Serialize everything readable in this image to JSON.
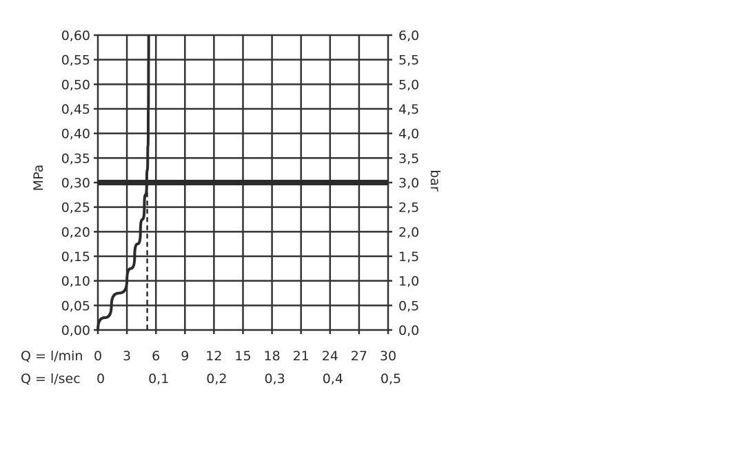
{
  "chart_data": {
    "type": "line",
    "ylabel_left": "MPa",
    "ylabel_right": "bar",
    "xlabel_min": "Q = l/min",
    "xlabel_sec": "Q = l/sec",
    "xlim": [
      0,
      30
    ],
    "ylim": [
      0,
      0.6
    ],
    "grid": true,
    "x_ticks_min": [
      "0",
      "3",
      "6",
      "9",
      "12",
      "15",
      "18",
      "21",
      "24",
      "27",
      "30"
    ],
    "x_ticks_min_values": [
      0,
      3,
      6,
      9,
      12,
      15,
      18,
      21,
      24,
      27,
      30
    ],
    "x_ticks_sec": [
      "0",
      "0,1",
      "0,2",
      "0,3",
      "0,4",
      "0,5"
    ],
    "x_ticks_sec_values": [
      0,
      6,
      12,
      18,
      24,
      30
    ],
    "y_ticks_left": [
      "0,00",
      "0,05",
      "0,10",
      "0,15",
      "0,20",
      "0,25",
      "0,30",
      "0,35",
      "0,40",
      "0,45",
      "0,50",
      "0,55",
      "0,60"
    ],
    "y_ticks_right": [
      "0,0",
      "0,5",
      "1,0",
      "1,5",
      "2,0",
      "2,5",
      "3,0",
      "3,5",
      "4,0",
      "4,5",
      "5,0",
      "5,5",
      "6,0"
    ],
    "y_tick_values": [
      0,
      0.05,
      0.1,
      0.15,
      0.2,
      0.25,
      0.3,
      0.35,
      0.4,
      0.45,
      0.5,
      0.55,
      0.6
    ],
    "series": [
      {
        "x": [
          0,
          1.4,
          3.0,
          3.8,
          4.4,
          4.8,
          5.05,
          5.15,
          5.2,
          5.23,
          5.25
        ],
        "y": [
          0,
          0.05,
          0.1,
          0.15,
          0.2,
          0.25,
          0.3,
          0.35,
          0.4,
          0.5,
          0.6
        ]
      }
    ],
    "reference_line_y": 0.3,
    "dashed_marker_x": 5.1,
    "colors": {
      "line": "#2b2b2b",
      "grid": "#333333"
    }
  }
}
